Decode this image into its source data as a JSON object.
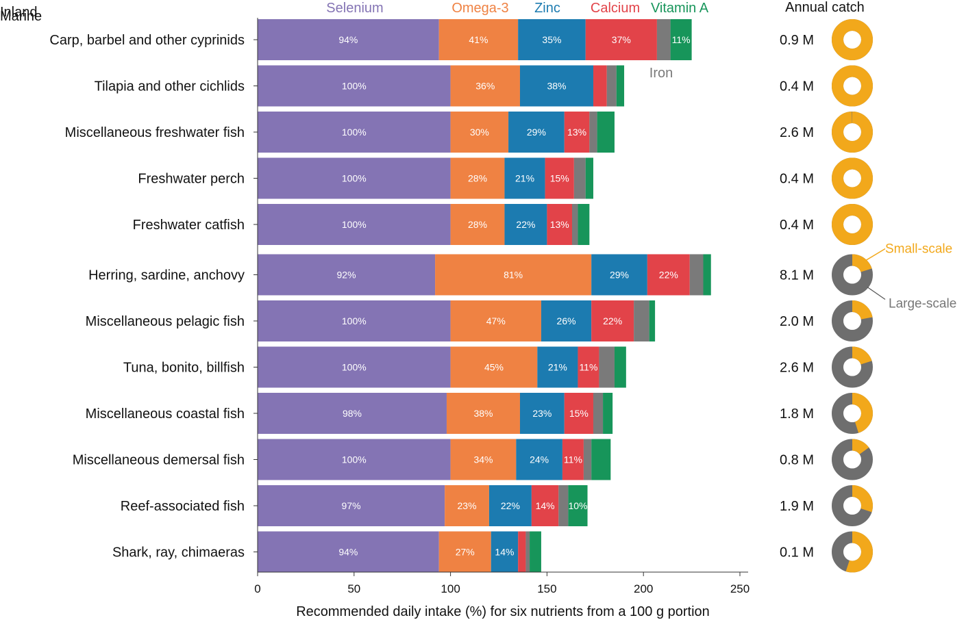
{
  "chart_data": {
    "type": "bar",
    "orientation": "horizontal",
    "stacked": true,
    "xlabel": "Recommended daily intake (%) for six nutrients from a 100 g portion",
    "xlim": [
      0,
      250
    ],
    "xticks": [
      "0",
      "50",
      "100",
      "150",
      "200",
      "250"
    ],
    "series_names": [
      "Selenium",
      "Omega-3",
      "Zinc",
      "Calcium",
      "Iron",
      "Vitamin A"
    ],
    "colors": {
      "Selenium": "#8474b4",
      "Omega-3": "#ef8243",
      "Zinc": "#1c7bb0",
      "Calcium": "#e24349",
      "Iron": "#7a7a7a",
      "Vitamin A": "#17955a",
      "small_scale": "#f2a81b",
      "large_scale": "#6e6e6e"
    },
    "legend": {
      "Selenium": "Selenium",
      "Omega-3": "Omega-3",
      "Zinc": "Zinc",
      "Calcium": "Calcium",
      "Vitamin A": "Vitamin A",
      "Iron": "Iron"
    },
    "catch_header": "Annual catch",
    "pie_legend": {
      "small": "Small-scale",
      "large": "Large-scale"
    },
    "groups": [
      {
        "name": "Inland",
        "rows": [
          {
            "category": "Carp, barbel and other cyprinids",
            "values": [
              94,
              41,
              35,
              37,
              7,
              11
            ],
            "labels": [
              "94%",
              "41%",
              "35%",
              "37%",
              "",
              "11%"
            ],
            "catch": "0.9 M",
            "small_scale_share": 1.0
          },
          {
            "category": "Tilapia and other cichlids",
            "values": [
              100,
              36,
              38,
              7,
              5,
              4
            ],
            "labels": [
              "100%",
              "36%",
              "38%",
              "",
              "",
              ""
            ],
            "catch": "0.4 M",
            "small_scale_share": 1.0
          },
          {
            "category": "Miscellaneous freshwater fish",
            "values": [
              100,
              30,
              29,
              13,
              4,
              9
            ],
            "labels": [
              "100%",
              "30%",
              "29%",
              "13%",
              "",
              ""
            ],
            "catch": "2.6 M",
            "small_scale_share": 0.995
          },
          {
            "category": "Freshwater perch",
            "values": [
              100,
              28,
              21,
              15,
              6,
              4
            ],
            "labels": [
              "100%",
              "28%",
              "21%",
              "15%",
              "",
              ""
            ],
            "catch": "0.4 M",
            "small_scale_share": 1.0
          },
          {
            "category": "Freshwater catfish",
            "values": [
              100,
              28,
              22,
              13,
              3,
              6
            ],
            "labels": [
              "100%",
              "28%",
              "22%",
              "13%",
              "",
              ""
            ],
            "catch": "0.4 M",
            "small_scale_share": 1.0
          }
        ]
      },
      {
        "name": "Marine",
        "rows": [
          {
            "category": "Herring, sardine, anchovy",
            "values": [
              92,
              81,
              29,
              22,
              7,
              4
            ],
            "labels": [
              "92%",
              "81%",
              "29%",
              "22%",
              "",
              ""
            ],
            "catch": "8.1 M",
            "small_scale_share": 0.2
          },
          {
            "category": "Miscellaneous pelagic fish",
            "values": [
              100,
              47,
              26,
              22,
              8,
              3
            ],
            "labels": [
              "100%",
              "47%",
              "26%",
              "22%",
              "",
              ""
            ],
            "catch": "2.0 M",
            "small_scale_share": 0.22
          },
          {
            "category": "Tuna, bonito, billfish",
            "values": [
              100,
              45,
              21,
              11,
              8,
              6
            ],
            "labels": [
              "100%",
              "45%",
              "21%",
              "11%",
              "",
              ""
            ],
            "catch": "2.6 M",
            "small_scale_share": 0.2
          },
          {
            "category": "Miscellaneous coastal fish",
            "values": [
              98,
              38,
              23,
              15,
              5,
              5
            ],
            "labels": [
              "98%",
              "38%",
              "23%",
              "15%",
              "",
              ""
            ],
            "catch": "1.8 M",
            "small_scale_share": 0.45
          },
          {
            "category": "Miscellaneous demersal fish",
            "values": [
              100,
              34,
              24,
              11,
              4,
              10
            ],
            "labels": [
              "100%",
              "34%",
              "24%",
              "11%",
              "",
              ""
            ],
            "catch": "0.8 M",
            "small_scale_share": 0.15
          },
          {
            "category": "Reef-associated fish",
            "values": [
              97,
              23,
              22,
              14,
              5,
              10
            ],
            "labels": [
              "97%",
              "23%",
              "22%",
              "14%",
              "",
              "10%"
            ],
            "catch": "1.9 M",
            "small_scale_share": 0.3
          },
          {
            "category": "Shark, ray, chimaeras",
            "values": [
              94,
              27,
              14,
              4,
              2,
              6
            ],
            "labels": [
              "94%",
              "27%",
              "14%",
              "",
              "",
              ""
            ],
            "catch": "0.1 M",
            "small_scale_share": 0.55
          }
        ]
      }
    ]
  }
}
